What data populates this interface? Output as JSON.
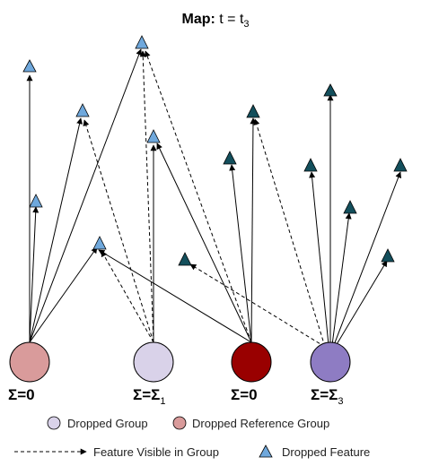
{
  "title": {
    "bold": "Map:",
    "text": " t = t",
    "subscript": "3"
  },
  "colors": {
    "group_reference_pink": "#d99b9b",
    "group_dropped_lilac": "#d9d2e9",
    "group_reference_red": "#990000",
    "group_dropped_purple": "#8e7cc3",
    "feature_blue": "#6fa8dc",
    "feature_teal": "#134f5c",
    "stroke": "#000000"
  },
  "groups": [
    {
      "label_main": "Σ=0",
      "label_sub": ""
    },
    {
      "label_main": "Σ=Σ",
      "label_sub": "1"
    },
    {
      "label_main": "Σ=0",
      "label_sub": ""
    },
    {
      "label_main": "Σ=Σ",
      "label_sub": "3"
    }
  ],
  "legend": {
    "dropped_group": "Dropped Group",
    "dropped_reference_group": "Dropped Reference Group",
    "feature_visible": "Feature Visible in Group",
    "dropped_feature": "Dropped Feature"
  }
}
